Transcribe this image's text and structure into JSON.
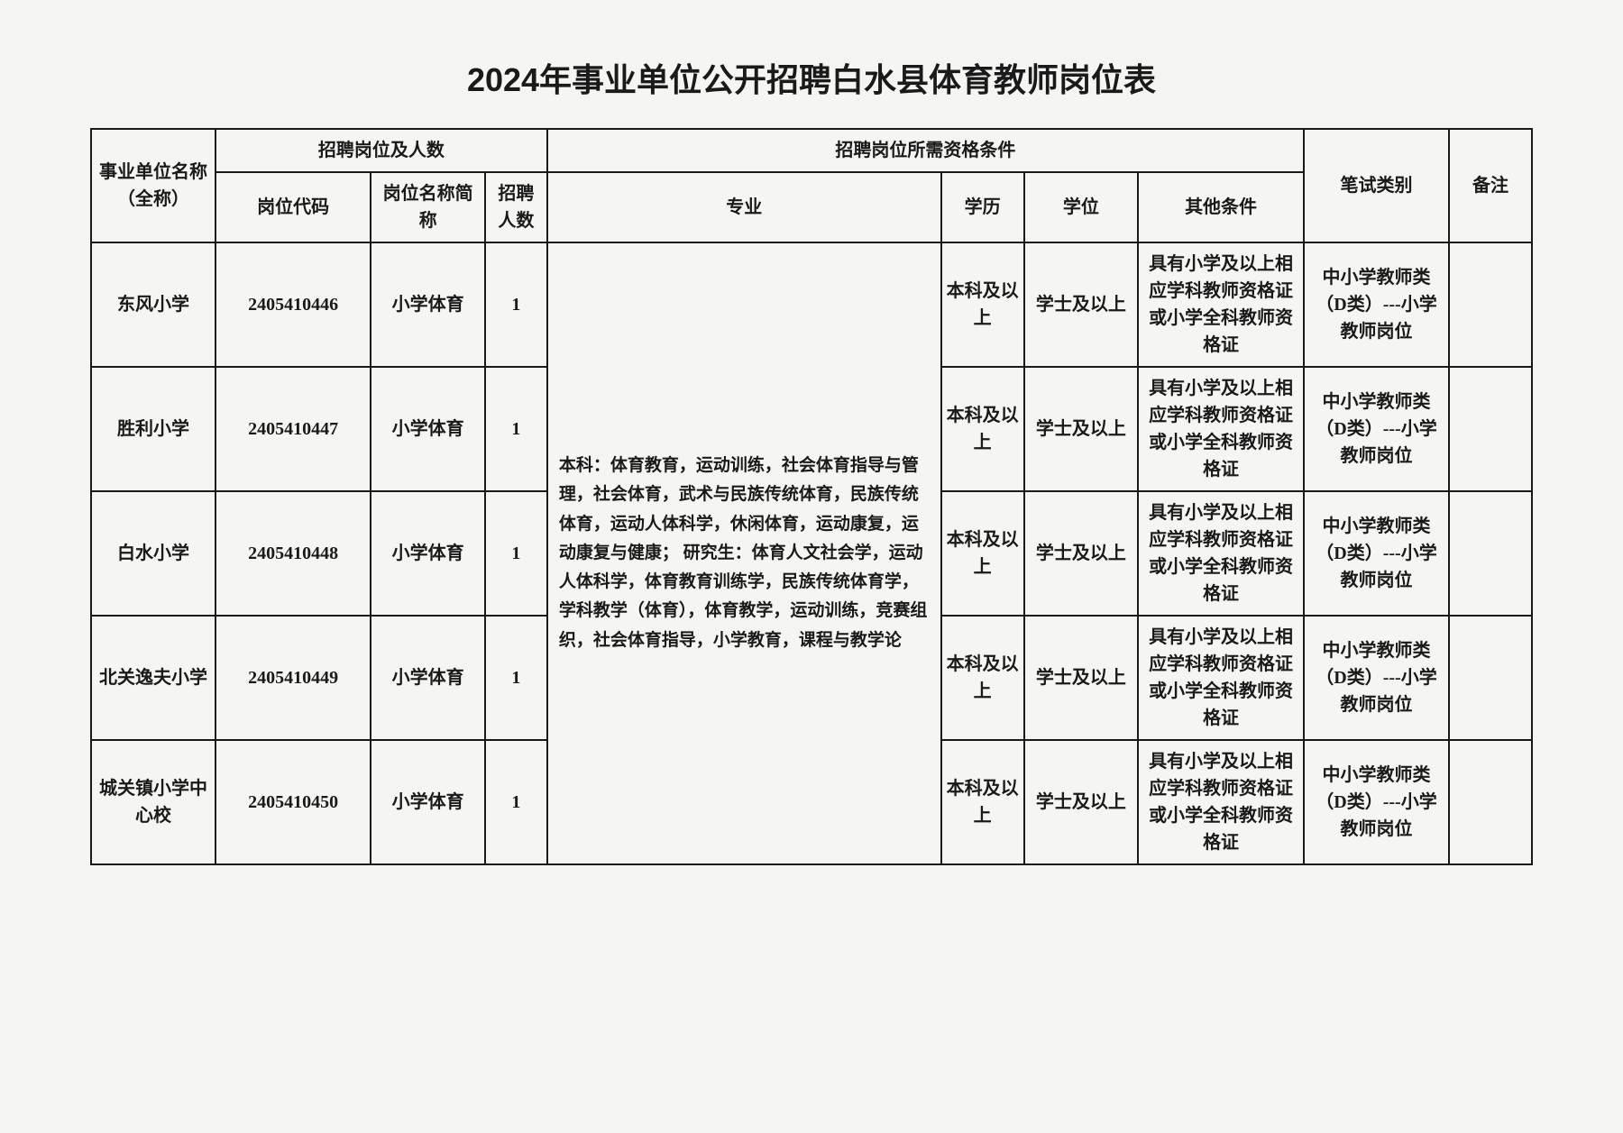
{
  "document": {
    "title": "2024年事业单位公开招聘白水县体育教师岗位表",
    "background_color": "#f5f5f2",
    "border_color": "#1a1a1a",
    "text_color": "#1a1a1a",
    "title_fontsize": 36,
    "cell_fontsize": 20
  },
  "headers": {
    "unit_name": "事业单位名称（全称）",
    "recruit_group": "招聘岗位及人数",
    "position_code": "岗位代码",
    "position_name": "岗位名称简称",
    "count": "招聘人数",
    "qualification_group": "招聘岗位所需资格条件",
    "major": "专业",
    "education": "学历",
    "degree": "学位",
    "other": "其他条件",
    "exam_type": "笔试类别",
    "note": "备注"
  },
  "shared": {
    "major_text": "本科：体育教育，运动训练，社会体育指导与管理，社会体育，武术与民族传统体育，民族传统体育，运动人体科学，休闲体育，运动康复，运动康复与健康；\n研究生：体育人文社会学，运动人体科学，体育教育训练学，民族传统体育学，学科教学（体育），体育教学，运动训练，竞赛组织，社会体育指导，小学教育，课程与教学论",
    "education": "本科及以上",
    "degree": "学士及以上",
    "other_condition": "具有小学及以上相应学科教师资格证或小学全科教师资格证",
    "exam_type": "中小学教师类（D类）---小学教师岗位"
  },
  "rows": [
    {
      "unit": "东风小学",
      "code": "2405410446",
      "position": "小学体育",
      "count": "1",
      "note": ""
    },
    {
      "unit": "胜利小学",
      "code": "2405410447",
      "position": "小学体育",
      "count": "1",
      "note": ""
    },
    {
      "unit": "白水小学",
      "code": "2405410448",
      "position": "小学体育",
      "count": "1",
      "note": ""
    },
    {
      "unit": "北关逸夫小学",
      "code": "2405410449",
      "position": "小学体育",
      "count": "1",
      "note": ""
    },
    {
      "unit": "城关镇小学中心校",
      "code": "2405410450",
      "position": "小学体育",
      "count": "1",
      "note": ""
    }
  ]
}
